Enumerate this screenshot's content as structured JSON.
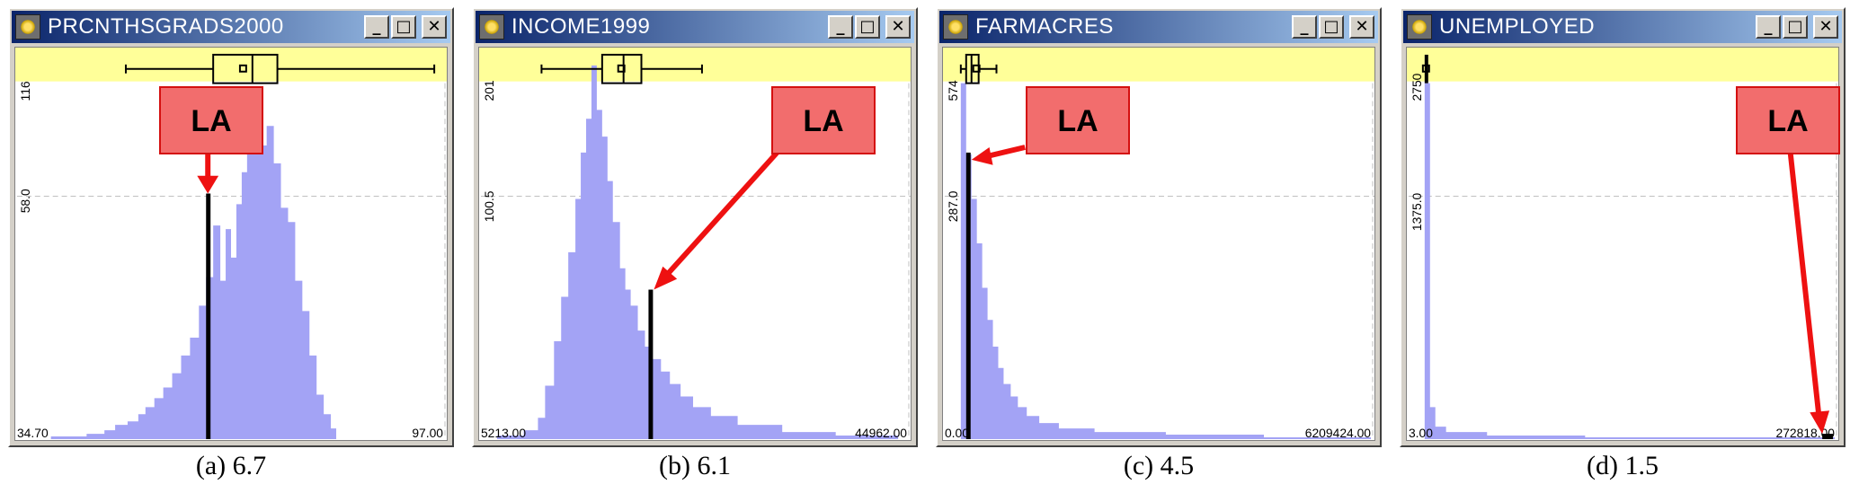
{
  "panels": [
    {
      "title": "PRCNTHSGRADS2000",
      "caption": "(a) 6.7",
      "callout": "LA",
      "y_max_label": "116",
      "y_mid_label": "58.0",
      "x_min_label": "34.70",
      "x_max_label": "97.00",
      "buttons": {
        "minimize": "_",
        "maximize": "□",
        "close": "✕"
      }
    },
    {
      "title": "INCOME1999",
      "caption": "(b) 6.1",
      "callout": "LA",
      "y_max_label": "201",
      "y_mid_label": "100.5",
      "x_min_label": "5213.00",
      "x_max_label": "44962.00",
      "buttons": {
        "minimize": "_",
        "maximize": "□",
        "close": "✕"
      }
    },
    {
      "title": "FARMACRES",
      "caption": "(c) 4.5",
      "callout": "LA",
      "y_max_label": "574",
      "y_mid_label": "287.0",
      "x_min_label": "0.00",
      "x_max_label": "6209424.00",
      "buttons": {
        "minimize": "_",
        "maximize": "□",
        "close": "✕"
      }
    },
    {
      "title": "UNEMPLOYED",
      "caption": "(d) 1.5",
      "callout": "LA",
      "y_max_label": "2750",
      "y_mid_label": "1375.0",
      "x_min_label": "3.00",
      "x_max_label": "272818.00",
      "buttons": {
        "minimize": "_",
        "maximize": "□",
        "close": "✕"
      }
    }
  ],
  "colors": {
    "title_bar_start": "#0a246a",
    "title_bar_end": "#a6caf0",
    "histogram_fill": "#a3a3f5",
    "boxplot_band": "#ffff99",
    "highlight_bar": "#000000",
    "callout_fill": "#f26d6d",
    "callout_border": "#d41010",
    "arrow": "#ee1111"
  },
  "icons": [
    "app-icon",
    "minimize-icon",
    "maximize-icon",
    "close-icon"
  ]
}
